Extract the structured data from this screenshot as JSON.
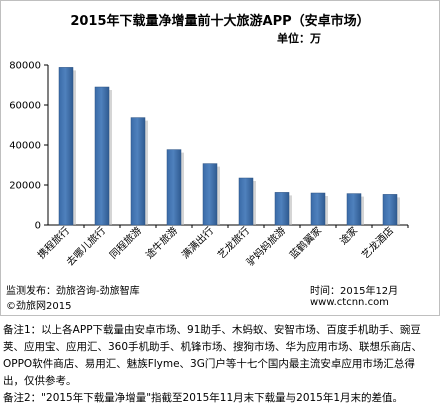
{
  "chart_data": {
    "type": "bar",
    "title": "2015年下载量净增量前十大旅游APP（安卓市场）",
    "unit_label": "单位：万",
    "categories": [
      "携程旅行",
      "去哪儿旅行",
      "同程旅游",
      "途牛旅游",
      "满满出行",
      "艺龙旅行",
      "驴妈妈旅游",
      "蓝鹤翼家",
      "途家",
      "艺龙酒店"
    ],
    "values": [
      78800,
      69000,
      53700,
      37700,
      30700,
      23500,
      16300,
      16000,
      15700,
      15300
    ],
    "ylim": [
      0,
      80000
    ],
    "yticks": [
      0,
      20000,
      40000,
      60000,
      80000
    ],
    "xlabel": "",
    "ylabel": "",
    "grid": false,
    "legend": "none",
    "bar_color": "#4f81bd"
  },
  "footer": {
    "source": "监测发布：劲旅咨询-劲旅智库",
    "time": "时间：2015年12月",
    "copyright": "©劲旅网2015",
    "website": "www.ctcnn.com"
  },
  "notes": {
    "note1": "备注1：以上各APP下载量由安卓市场、91助手、木蚂蚁、安智市场、百度手机助手、豌豆荚、应用宝、应用汇、360手机助手、机锋市场、搜狗市场、华为应用市场、联想乐商店、OPPO软件商店、易用汇、魅族Flyme、3G门户等十七个国内最主流安卓应用市场汇总得出，仅供参考。",
    "note2": "备注2：\"2015年下载量净增量\"指截至2015年11月末下载量与2015年1月末的差值。"
  }
}
